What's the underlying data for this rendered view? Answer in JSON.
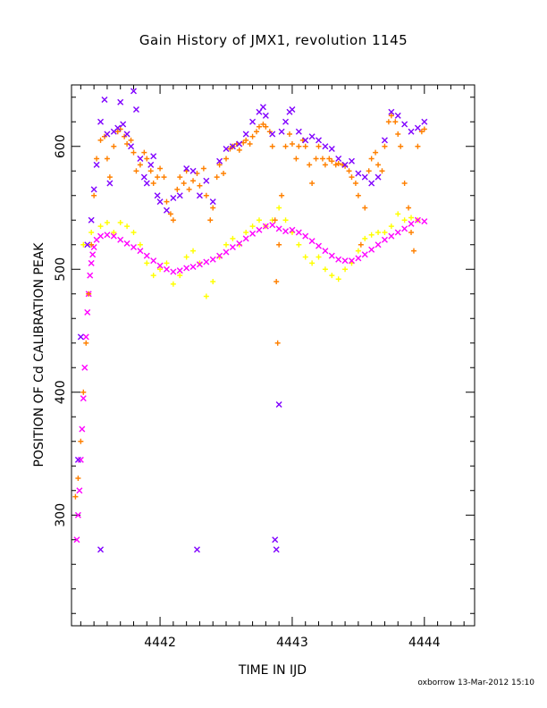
{
  "title": "Gain History of JMX1, revolution 1145",
  "footer": "oxborrow 13-Mar-2012 15:10",
  "chart_data": {
    "type": "scatter",
    "title": "Gain History of JMX1, revolution 1145",
    "xlabel": "TIME IN IJD",
    "ylabel": "POSITION OF Cd CALIBRATION PEAK",
    "xlim": [
      4441.33,
      4444.38
    ],
    "ylim": [
      210,
      650
    ],
    "x_ticks": [
      4442,
      4443,
      4444
    ],
    "x_tick_labels": [
      "4442",
      "4443",
      "4444"
    ],
    "y_ticks": [
      300,
      400,
      500,
      600
    ],
    "y_tick_labels": [
      "300",
      "400",
      "500",
      "600"
    ],
    "grid": false,
    "series": [
      {
        "color": "#ffff00",
        "marker": "plus",
        "points": [
          [
            4441.42,
            520
          ],
          [
            4441.48,
            530
          ],
          [
            4441.55,
            535
          ],
          [
            4441.6,
            538
          ],
          [
            4441.65,
            530
          ],
          [
            4441.7,
            538
          ],
          [
            4441.75,
            535
          ],
          [
            4441.8,
            530
          ],
          [
            4441.85,
            520
          ],
          [
            4441.9,
            505
          ],
          [
            4441.95,
            495
          ],
          [
            4442.0,
            500
          ],
          [
            4442.05,
            505
          ],
          [
            4442.1,
            488
          ],
          [
            4442.15,
            495
          ],
          [
            4442.2,
            510
          ],
          [
            4442.25,
            515
          ],
          [
            4442.3,
            505
          ],
          [
            4442.35,
            478
          ],
          [
            4442.4,
            490
          ],
          [
            4442.45,
            510
          ],
          [
            4442.5,
            520
          ],
          [
            4442.55,
            525
          ],
          [
            4442.6,
            520
          ],
          [
            4442.65,
            530
          ],
          [
            4442.7,
            535
          ],
          [
            4442.75,
            540
          ],
          [
            4442.8,
            535
          ],
          [
            4442.85,
            540
          ],
          [
            4442.9,
            550
          ],
          [
            4442.95,
            540
          ],
          [
            4443.0,
            530
          ],
          [
            4443.05,
            520
          ],
          [
            4443.1,
            510
          ],
          [
            4443.15,
            505
          ],
          [
            4443.2,
            510
          ],
          [
            4443.25,
            500
          ],
          [
            4443.3,
            495
          ],
          [
            4443.35,
            492
          ],
          [
            4443.4,
            500
          ],
          [
            4443.45,
            505
          ],
          [
            4443.5,
            515
          ],
          [
            4443.55,
            525
          ],
          [
            4443.6,
            528
          ],
          [
            4443.65,
            530
          ],
          [
            4443.7,
            530
          ],
          [
            4443.75,
            535
          ],
          [
            4443.8,
            545
          ],
          [
            4443.85,
            540
          ],
          [
            4443.9,
            542
          ],
          [
            4443.95,
            540
          ]
        ]
      },
      {
        "color": "#ff00ff",
        "marker": "cross",
        "points": [
          [
            4441.37,
            280
          ],
          [
            4441.38,
            300
          ],
          [
            4441.39,
            320
          ],
          [
            4441.4,
            345
          ],
          [
            4441.41,
            370
          ],
          [
            4441.42,
            395
          ],
          [
            4441.43,
            420
          ],
          [
            4441.44,
            445
          ],
          [
            4441.45,
            465
          ],
          [
            4441.46,
            480
          ],
          [
            4441.47,
            495
          ],
          [
            4441.48,
            505
          ],
          [
            4441.49,
            512
          ],
          [
            4441.5,
            518
          ],
          [
            4441.52,
            524
          ],
          [
            4441.55,
            527
          ],
          [
            4441.6,
            528
          ],
          [
            4441.65,
            527
          ],
          [
            4441.7,
            524
          ],
          [
            4441.75,
            521
          ],
          [
            4441.8,
            518
          ],
          [
            4441.85,
            515
          ],
          [
            4441.9,
            511
          ],
          [
            4441.95,
            507
          ],
          [
            4442.0,
            503
          ],
          [
            4442.05,
            500
          ],
          [
            4442.1,
            498
          ],
          [
            4442.15,
            499
          ],
          [
            4442.2,
            501
          ],
          [
            4442.25,
            502
          ],
          [
            4442.3,
            504
          ],
          [
            4442.35,
            506
          ],
          [
            4442.4,
            508
          ],
          [
            4442.45,
            511
          ],
          [
            4442.5,
            514
          ],
          [
            4442.55,
            518
          ],
          [
            4442.6,
            521
          ],
          [
            4442.65,
            525
          ],
          [
            4442.7,
            529
          ],
          [
            4442.75,
            532
          ],
          [
            4442.8,
            535
          ],
          [
            4442.85,
            536
          ],
          [
            4442.9,
            533
          ],
          [
            4442.95,
            531
          ],
          [
            4443.0,
            532
          ],
          [
            4443.05,
            530
          ],
          [
            4443.1,
            527
          ],
          [
            4443.15,
            523
          ],
          [
            4443.2,
            519
          ],
          [
            4443.25,
            515
          ],
          [
            4443.3,
            511
          ],
          [
            4443.35,
            508
          ],
          [
            4443.4,
            507
          ],
          [
            4443.45,
            507
          ],
          [
            4443.5,
            509
          ],
          [
            4443.55,
            512
          ],
          [
            4443.6,
            516
          ],
          [
            4443.65,
            520
          ],
          [
            4443.7,
            524
          ],
          [
            4443.75,
            527
          ],
          [
            4443.8,
            530
          ],
          [
            4443.85,
            533
          ],
          [
            4443.9,
            537
          ],
          [
            4443.95,
            540
          ],
          [
            4444.0,
            539
          ]
        ]
      },
      {
        "color": "#ff8000",
        "marker": "plus",
        "points": [
          [
            4441.36,
            315
          ],
          [
            4441.38,
            330
          ],
          [
            4441.4,
            360
          ],
          [
            4441.42,
            400
          ],
          [
            4441.44,
            440
          ],
          [
            4441.46,
            480
          ],
          [
            4441.48,
            520
          ],
          [
            4441.5,
            560
          ],
          [
            4441.52,
            590
          ],
          [
            4441.55,
            605
          ],
          [
            4441.58,
            608
          ],
          [
            4441.6,
            590
          ],
          [
            4441.62,
            575
          ],
          [
            4441.65,
            600
          ],
          [
            4441.68,
            612
          ],
          [
            4441.7,
            614
          ],
          [
            4441.73,
            608
          ],
          [
            4441.75,
            602
          ],
          [
            4441.78,
            605
          ],
          [
            4441.8,
            595
          ],
          [
            4441.82,
            580
          ],
          [
            4441.85,
            585
          ],
          [
            4441.88,
            595
          ],
          [
            4441.9,
            590
          ],
          [
            4441.93,
            580
          ],
          [
            4441.95,
            570
          ],
          [
            4441.98,
            575
          ],
          [
            4442.0,
            582
          ],
          [
            4442.03,
            575
          ],
          [
            4442.05,
            555
          ],
          [
            4442.08,
            545
          ],
          [
            4442.1,
            540
          ],
          [
            4442.13,
            565
          ],
          [
            4442.15,
            575
          ],
          [
            4442.18,
            570
          ],
          [
            4442.2,
            580
          ],
          [
            4442.22,
            565
          ],
          [
            4442.25,
            572
          ],
          [
            4442.28,
            578
          ],
          [
            4442.3,
            568
          ],
          [
            4442.33,
            582
          ],
          [
            4442.35,
            560
          ],
          [
            4442.38,
            540
          ],
          [
            4442.4,
            550
          ],
          [
            4442.43,
            575
          ],
          [
            4442.45,
            585
          ],
          [
            4442.48,
            578
          ],
          [
            4442.5,
            590
          ],
          [
            4442.53,
            598
          ],
          [
            4442.55,
            600
          ],
          [
            4442.58,
            602
          ],
          [
            4442.6,
            597
          ],
          [
            4442.63,
            603
          ],
          [
            4442.65,
            605
          ],
          [
            4442.68,
            602
          ],
          [
            4442.7,
            608
          ],
          [
            4442.73,
            612
          ],
          [
            4442.75,
            616
          ],
          [
            4442.78,
            618
          ],
          [
            4442.8,
            616
          ],
          [
            4442.83,
            612
          ],
          [
            4442.85,
            600
          ],
          [
            4442.87,
            540
          ],
          [
            4442.88,
            490
          ],
          [
            4442.89,
            440
          ],
          [
            4442.9,
            520
          ],
          [
            4442.92,
            560
          ],
          [
            4442.95,
            600
          ],
          [
            4442.98,
            610
          ],
          [
            4443.0,
            602
          ],
          [
            4443.03,
            590
          ],
          [
            4443.05,
            600
          ],
          [
            4443.08,
            605
          ],
          [
            4443.1,
            600
          ],
          [
            4443.13,
            585
          ],
          [
            4443.15,
            570
          ],
          [
            4443.18,
            590
          ],
          [
            4443.2,
            600
          ],
          [
            4443.23,
            590
          ],
          [
            4443.25,
            585
          ],
          [
            4443.28,
            590
          ],
          [
            4443.3,
            588
          ],
          [
            4443.33,
            585
          ],
          [
            4443.35,
            586
          ],
          [
            4443.38,
            585
          ],
          [
            4443.4,
            584
          ],
          [
            4443.43,
            580
          ],
          [
            4443.45,
            575
          ],
          [
            4443.48,
            570
          ],
          [
            4443.5,
            560
          ],
          [
            4443.52,
            520
          ],
          [
            4443.55,
            550
          ],
          [
            4443.58,
            580
          ],
          [
            4443.6,
            590
          ],
          [
            4443.63,
            595
          ],
          [
            4443.65,
            585
          ],
          [
            4443.68,
            580
          ],
          [
            4443.7,
            600
          ],
          [
            4443.73,
            620
          ],
          [
            4443.75,
            625
          ],
          [
            4443.78,
            620
          ],
          [
            4443.8,
            610
          ],
          [
            4443.82,
            600
          ],
          [
            4443.85,
            570
          ],
          [
            4443.88,
            550
          ],
          [
            4443.9,
            530
          ],
          [
            4443.92,
            515
          ],
          [
            4443.95,
            600
          ],
          [
            4443.98,
            612
          ],
          [
            4444.0,
            614
          ]
        ]
      },
      {
        "color": "#8000ff",
        "marker": "x",
        "points": [
          [
            4441.38,
            345
          ],
          [
            4441.4,
            445
          ],
          [
            4441.45,
            520
          ],
          [
            4441.48,
            540
          ],
          [
            4441.5,
            565
          ],
          [
            4441.52,
            585
          ],
          [
            4441.55,
            620
          ],
          [
            4441.58,
            638
          ],
          [
            4441.6,
            610
          ],
          [
            4441.62,
            570
          ],
          [
            4441.65,
            612
          ],
          [
            4441.68,
            615
          ],
          [
            4441.7,
            636
          ],
          [
            4441.72,
            618
          ],
          [
            4441.75,
            610
          ],
          [
            4441.78,
            600
          ],
          [
            4441.8,
            645
          ],
          [
            4441.82,
            630
          ],
          [
            4441.85,
            590
          ],
          [
            4441.88,
            575
          ],
          [
            4441.9,
            570
          ],
          [
            4441.93,
            585
          ],
          [
            4441.95,
            592
          ],
          [
            4441.98,
            560
          ],
          [
            4442.0,
            555
          ],
          [
            4442.05,
            548
          ],
          [
            4442.1,
            558
          ],
          [
            4442.15,
            560
          ],
          [
            4442.2,
            582
          ],
          [
            4442.25,
            580
          ],
          [
            4442.28,
            272
          ],
          [
            4442.3,
            560
          ],
          [
            4442.35,
            572
          ],
          [
            4442.4,
            555
          ],
          [
            4442.45,
            588
          ],
          [
            4442.5,
            598
          ],
          [
            4442.55,
            600
          ],
          [
            4442.6,
            602
          ],
          [
            4442.65,
            610
          ],
          [
            4442.7,
            620
          ],
          [
            4442.75,
            628
          ],
          [
            4442.78,
            632
          ],
          [
            4442.8,
            625
          ],
          [
            4442.85,
            610
          ],
          [
            4442.87,
            280
          ],
          [
            4442.88,
            272
          ],
          [
            4442.9,
            390
          ],
          [
            4442.92,
            612
          ],
          [
            4442.95,
            620
          ],
          [
            4442.98,
            628
          ],
          [
            4443.0,
            630
          ],
          [
            4443.05,
            612
          ],
          [
            4443.1,
            605
          ],
          [
            4443.15,
            608
          ],
          [
            4443.2,
            605
          ],
          [
            4443.25,
            600
          ],
          [
            4443.3,
            598
          ],
          [
            4443.35,
            590
          ],
          [
            4443.4,
            585
          ],
          [
            4443.45,
            588
          ],
          [
            4443.5,
            578
          ],
          [
            4443.55,
            575
          ],
          [
            4443.6,
            570
          ],
          [
            4443.65,
            575
          ],
          [
            4443.7,
            605
          ],
          [
            4443.75,
            628
          ],
          [
            4443.8,
            625
          ],
          [
            4443.85,
            618
          ],
          [
            4443.9,
            612
          ],
          [
            4443.95,
            615
          ],
          [
            4444.0,
            620
          ],
          [
            4441.55,
            272
          ]
        ]
      }
    ]
  }
}
